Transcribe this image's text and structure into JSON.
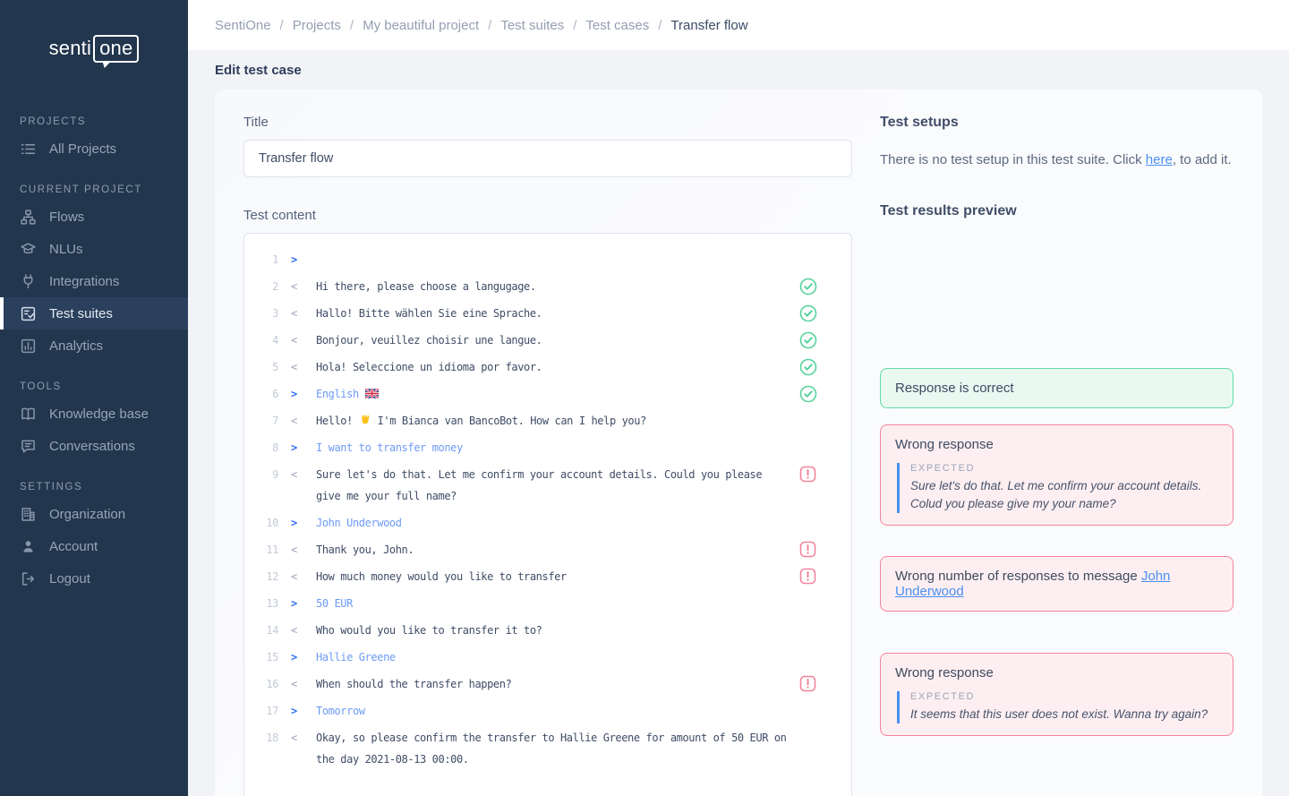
{
  "brand": {
    "logo_left": "senti",
    "logo_boxed": "one"
  },
  "sidebar": {
    "sections": [
      {
        "title": "Projects",
        "items": [
          {
            "label": "All Projects",
            "icon": "list-icon",
            "active": false
          }
        ]
      },
      {
        "title": "Current project",
        "items": [
          {
            "label": "Flows",
            "icon": "flows-icon",
            "active": false
          },
          {
            "label": "NLUs",
            "icon": "nlu-icon",
            "active": false
          },
          {
            "label": "Integrations",
            "icon": "plug-icon",
            "active": false
          },
          {
            "label": "Test suites",
            "icon": "test-suites-icon",
            "active": true
          },
          {
            "label": "Analytics",
            "icon": "analytics-icon",
            "active": false
          }
        ]
      },
      {
        "title": "Tools",
        "items": [
          {
            "label": "Knowledge base",
            "icon": "book-icon",
            "active": false
          },
          {
            "label": "Conversations",
            "icon": "chat-icon",
            "active": false
          }
        ]
      },
      {
        "title": "Settings",
        "items": [
          {
            "label": "Organization",
            "icon": "building-icon",
            "active": false
          },
          {
            "label": "Account",
            "icon": "person-icon",
            "active": false
          },
          {
            "label": "Logout",
            "icon": "logout-icon",
            "active": false
          }
        ]
      }
    ]
  },
  "breadcrumb": {
    "separator": "/",
    "items": [
      "SentiOne",
      "Projects",
      "My beautiful project",
      "Test suites",
      "Test cases"
    ],
    "current": "Transfer flow"
  },
  "page": {
    "heading": "Edit test case"
  },
  "form": {
    "title_label": "Title",
    "title_value": "Transfer flow",
    "content_label": "Test content"
  },
  "editor": {
    "lines": [
      {
        "num": 1,
        "dir": ">",
        "text": "",
        "status": null
      },
      {
        "num": 2,
        "dir": "<",
        "text": "Hi there, please choose a langugage.",
        "status": "ok"
      },
      {
        "num": 3,
        "dir": "<",
        "text": "Hallo! Bitte wählen Sie eine Sprache.",
        "status": "ok"
      },
      {
        "num": 4,
        "dir": "<",
        "text": "Bonjour, veuillez choisir une langue.",
        "status": "ok"
      },
      {
        "num": 5,
        "dir": "<",
        "text": "Hola! Seleccione un idioma por favor.",
        "status": "ok"
      },
      {
        "num": 6,
        "dir": ">",
        "text": "English {flag-gb}",
        "status": "ok"
      },
      {
        "num": 7,
        "dir": "<",
        "text": "Hello! {wave} I'm Bianca van BancoBot. How can I help you?",
        "status": null
      },
      {
        "num": 8,
        "dir": ">",
        "text": "I want to transfer money",
        "status": null
      },
      {
        "num": 9,
        "dir": "<",
        "text": "Sure let's do that. Let me confirm your account details. Could you please give me your full name?",
        "status": "error"
      },
      {
        "num": 10,
        "dir": ">",
        "text": "John Underwood",
        "status": null
      },
      {
        "num": 11,
        "dir": "<",
        "text": "Thank you, John.",
        "status": "error"
      },
      {
        "num": 12,
        "dir": "<",
        "text": "How much money would you like to transfer",
        "status": "error"
      },
      {
        "num": 13,
        "dir": ">",
        "text": "50 EUR",
        "status": null
      },
      {
        "num": 14,
        "dir": "<",
        "text": "Who would you like to transfer it to?",
        "status": null
      },
      {
        "num": 15,
        "dir": ">",
        "text": "Hallie Greene",
        "status": null
      },
      {
        "num": 16,
        "dir": "<",
        "text": "When should the transfer happen?",
        "status": "error"
      },
      {
        "num": 17,
        "dir": ">",
        "text": "Tomorrow",
        "status": null
      },
      {
        "num": 18,
        "dir": "<",
        "text": "Okay, so please confirm the transfer to Hallie Greene for amount of 50 EUR on the day 2021-08-13 00:00.",
        "status": null
      }
    ]
  },
  "test_setups": {
    "heading": "Test setups",
    "text_before": "There is no test setup in this test suite. Click ",
    "link_label": "here",
    "text_after": ", to add it."
  },
  "results": {
    "heading": "Test results preview",
    "cards": [
      {
        "type": "success",
        "title": "Response is correct",
        "gap": ""
      },
      {
        "type": "error",
        "title": "Wrong response",
        "expected_label": "Expected",
        "expected_text": "Sure let's do that. Let me confirm your account details. Colud you please give my your name?",
        "gap": "gap-sm"
      },
      {
        "type": "error",
        "title_before": "Wrong number of responses to message ",
        "link_label": "John Underwood",
        "gap": "gap-md"
      },
      {
        "type": "error",
        "title": "Wrong response",
        "expected_label": "Expected",
        "expected_text": "It seems that this user does not exist. Wanna try again?",
        "gap": "gap-lg"
      }
    ]
  },
  "colors": {
    "sidebar_bg": "#22364e",
    "success_green": "#57d39a",
    "error_pink": "#f2849b",
    "link_blue": "#4a90f2",
    "user_message_blue": "#6d9bf5",
    "prompt_arrow_blue": "#2e6cf3"
  }
}
